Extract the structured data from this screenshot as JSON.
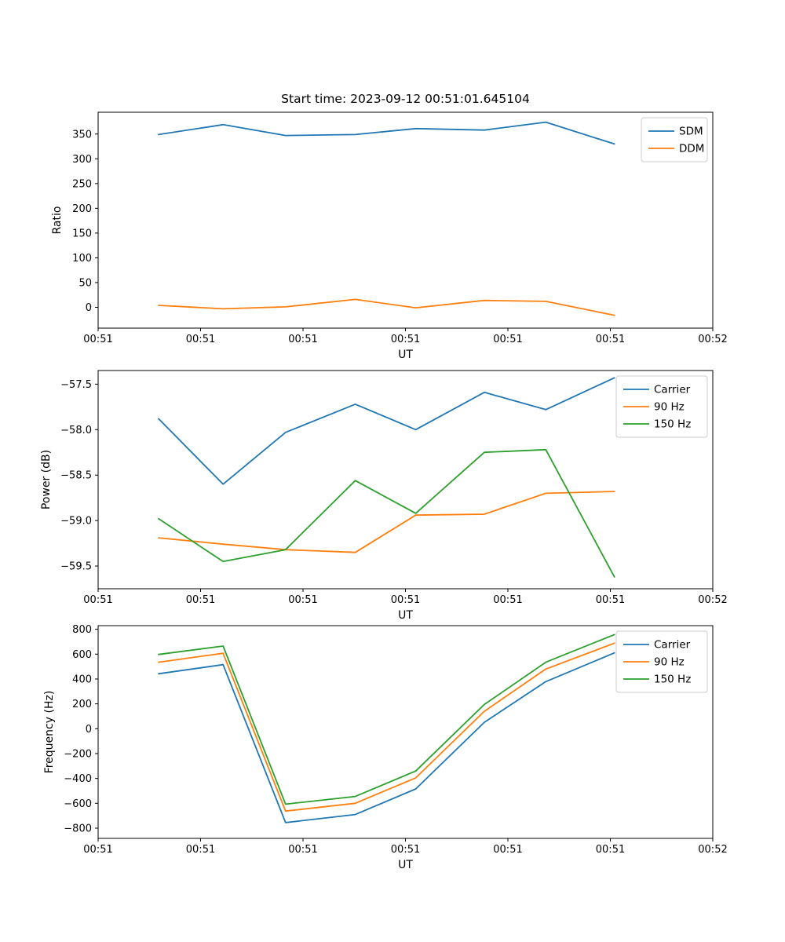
{
  "figure": {
    "title": "Start time: 2023-09-12 00:51:01.645104",
    "background": "#ffffff",
    "text_color": "#000000"
  },
  "colors": {
    "blue": "#1f77b4",
    "orange": "#ff7f0e",
    "green": "#2ca02c",
    "spine": "#000000",
    "legend_edge": "#cccccc",
    "legend_bg": "#ffffff"
  },
  "chart_data": [
    {
      "type": "line",
      "id": "ratio",
      "title": "Start time: 2023-09-12 00:51:01.645104",
      "xlabel": "UT",
      "ylabel": "Ratio",
      "grid": false,
      "legend_position": "upper-right",
      "xlim_seconds": [
        0,
        60
      ],
      "x_seconds": [
        5.9,
        12.2,
        18.3,
        25.1,
        31.0,
        37.7,
        43.7,
        50.4
      ],
      "xticklabels": [
        "00:51",
        "00:51",
        "00:51",
        "00:51",
        "00:51",
        "00:51",
        "00:52"
      ],
      "yticks": [
        0,
        50,
        100,
        150,
        200,
        250,
        300,
        350
      ],
      "ytick_decimals": 0,
      "ylim": [
        -42,
        394
      ],
      "series": [
        {
          "name": "SDM",
          "color": "#1f77b4",
          "values": [
            349,
            369,
            347,
            349,
            361,
            358,
            374,
            330
          ]
        },
        {
          "name": "DDM",
          "color": "#ff7f0e",
          "values": [
            4,
            -3,
            1,
            16,
            -1,
            14,
            12,
            -16
          ]
        }
      ]
    },
    {
      "type": "line",
      "id": "power",
      "title": "",
      "xlabel": "UT",
      "ylabel": "Power (dB)",
      "grid": false,
      "legend_position": "upper-right",
      "xlim_seconds": [
        0,
        60
      ],
      "x_seconds": [
        5.9,
        12.2,
        18.3,
        25.1,
        31.0,
        37.7,
        43.7,
        50.4
      ],
      "xticklabels": [
        "00:51",
        "00:51",
        "00:51",
        "00:51",
        "00:51",
        "00:51",
        "00:52"
      ],
      "yticks": [
        -57.5,
        -58.0,
        -58.5,
        -59.0,
        -59.5
      ],
      "ytick_decimals": 1,
      "ylim": [
        -59.75,
        -57.35
      ],
      "series": [
        {
          "name": "Carrier",
          "color": "#1f77b4",
          "values": [
            -57.88,
            -58.6,
            -58.03,
            -57.72,
            -58.0,
            -57.59,
            -57.78,
            -57.43
          ]
        },
        {
          "name": "90 Hz",
          "color": "#ff7f0e",
          "values": [
            -59.19,
            -59.26,
            -59.32,
            -59.35,
            -58.94,
            -58.93,
            -58.7,
            -58.68
          ]
        },
        {
          "name": "150 Hz",
          "color": "#2ca02c",
          "values": [
            -58.98,
            -59.45,
            -59.32,
            -58.56,
            -58.92,
            -58.25,
            -58.22,
            -59.62
          ]
        }
      ]
    },
    {
      "type": "line",
      "id": "frequency",
      "title": "",
      "xlabel": "UT",
      "ylabel": "Frequency (Hz)",
      "grid": false,
      "legend_position": "upper-right",
      "xlim_seconds": [
        0,
        60
      ],
      "x_seconds": [
        5.9,
        12.2,
        18.3,
        25.1,
        31.0,
        37.7,
        43.7,
        50.4
      ],
      "xticklabels": [
        "00:51",
        "00:51",
        "00:51",
        "00:51",
        "00:51",
        "00:51",
        "00:52"
      ],
      "yticks": [
        800,
        600,
        400,
        200,
        0,
        -200,
        -400,
        -600,
        -800
      ],
      "ytick_decimals": 0,
      "ylim": [
        -882,
        829
      ],
      "series": [
        {
          "name": "Carrier",
          "color": "#1f77b4",
          "values": [
            442,
            515,
            -755,
            -690,
            -484,
            52,
            379,
            610
          ]
        },
        {
          "name": "90 Hz",
          "color": "#ff7f0e",
          "values": [
            535,
            607,
            -662,
            -600,
            -395,
            140,
            480,
            688
          ]
        },
        {
          "name": "150 Hz",
          "color": "#2ca02c",
          "values": [
            597,
            665,
            -607,
            -545,
            -340,
            195,
            535,
            757
          ]
        }
      ]
    }
  ]
}
